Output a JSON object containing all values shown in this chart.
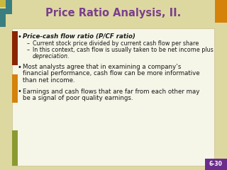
{
  "title": "Price Ratio Analysis, II.",
  "title_color": "#7B3F8C",
  "title_fontsize": 10.5,
  "bg_outer": "#DDD8A0",
  "bg_inner": "#F5F5E8",
  "slide_number": "6-30",
  "slide_number_bg": "#6B2D8B",
  "slide_number_color": "#FFFFFF",
  "teal_color": "#3A7E80",
  "dark_red_color": "#8B2500",
  "orange_color": "#D4820A",
  "olive_color": "#8B8B00",
  "bullet1_main": "Price-cash flow ratio (P/CF ratio)",
  "sub1": "Current stock price divided by current cash flow per share",
  "sub2_1": "In this context, cash flow is usually taken to be net income plus",
  "sub2_2": "depreciation.",
  "bullet2_1": "Most analysts agree that in examining a company’s",
  "bullet2_2": "financial performance, cash flow can be more informative",
  "bullet2_3": "than net income.",
  "bullet3_1": "Earnings and cash flows that are far from each other may",
  "bullet3_2": "be a signal of poor quality earnings.",
  "text_color": "#1A1A1A"
}
